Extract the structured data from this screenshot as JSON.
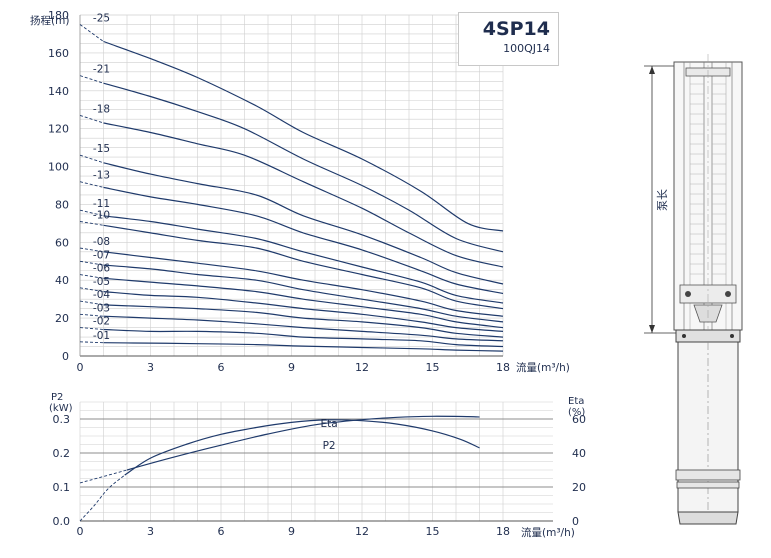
{
  "colors": {
    "curve": "#1f3a6b",
    "grid": "#cfcfcf",
    "grid_major": "#8c8c8c",
    "axis_text": "#1f2d4e"
  },
  "chart_data": [
    {
      "type": "line",
      "title": "4SP14",
      "subtitle": "100QJ14",
      "ylabel": "扬程(m)",
      "xlabel": "流量(m³/h)",
      "xlim": [
        0,
        18
      ],
      "ylim": [
        0,
        180
      ],
      "xticks": [
        0,
        3,
        6,
        9,
        12,
        15,
        18
      ],
      "yticks": [
        0,
        20,
        40,
        60,
        80,
        100,
        120,
        140,
        160,
        180
      ],
      "grid": true,
      "series": [
        {
          "name": "-25",
          "head0": 175,
          "x": [
            1.0,
            3,
            5,
            7.5,
            9.5,
            12,
            14.5,
            16.5,
            18
          ],
          "y": [
            166,
            157,
            147,
            132,
            118,
            104,
            87,
            70,
            66
          ]
        },
        {
          "name": "-21",
          "head0": 148,
          "x": [
            1.0,
            3,
            5,
            7,
            9.5,
            12,
            14,
            16,
            18
          ],
          "y": [
            144,
            137,
            129,
            120,
            104,
            90,
            77,
            62,
            55
          ]
        },
        {
          "name": "-18",
          "head0": 127,
          "x": [
            1.0,
            3,
            5,
            7,
            9.5,
            12,
            14,
            16,
            18
          ],
          "y": [
            123,
            118,
            112,
            106,
            92,
            78,
            65,
            53,
            47
          ]
        },
        {
          "name": "-15",
          "head0": 106,
          "x": [
            1.0,
            3,
            5,
            7.5,
            9.5,
            12,
            14.5,
            16,
            18
          ],
          "y": [
            102,
            96,
            91,
            85,
            74,
            64,
            52,
            44,
            38
          ]
        },
        {
          "name": "-13",
          "head0": 92,
          "x": [
            1.0,
            3,
            5,
            7.5,
            9.5,
            12,
            14.5,
            16,
            18
          ],
          "y": [
            89,
            84,
            80,
            74,
            65,
            56,
            45,
            38,
            33
          ]
        },
        {
          "name": "-11",
          "head0": 77,
          "x": [
            1.0,
            3,
            5,
            7.5,
            9.5,
            12,
            14.5,
            16,
            18
          ],
          "y": [
            74,
            71,
            67,
            62,
            55,
            47,
            39,
            32,
            28
          ]
        },
        {
          "name": "-10",
          "head0": 71,
          "x": [
            1.0,
            3,
            5,
            7.5,
            9.5,
            12,
            14.5,
            16,
            18
          ],
          "y": [
            69,
            65,
            61,
            57,
            50,
            43,
            36,
            29,
            25
          ]
        },
        {
          "name": "-08",
          "head0": 57,
          "x": [
            1.0,
            3,
            5,
            7.5,
            9.5,
            12,
            14.5,
            16,
            18
          ],
          "y": [
            55,
            52,
            49,
            45,
            40,
            35,
            29,
            24,
            21
          ]
        },
        {
          "name": "-07",
          "head0": 50,
          "x": [
            1.0,
            3,
            5,
            7.5,
            9.5,
            12,
            14.5,
            16,
            18
          ],
          "y": [
            48,
            46,
            43,
            40,
            35,
            30,
            25,
            21,
            18
          ]
        },
        {
          "name": "-06",
          "head0": 43,
          "x": [
            1.0,
            3,
            5,
            7.5,
            9.5,
            12,
            14.5,
            16,
            18
          ],
          "y": [
            41,
            39,
            37,
            34,
            30,
            26,
            22,
            18,
            15
          ]
        },
        {
          "name": "-05",
          "head0": 36,
          "x": [
            1.0,
            3,
            5,
            7.5,
            9.5,
            12,
            14.5,
            16,
            18
          ],
          "y": [
            34,
            32,
            31,
            28,
            25,
            22,
            18,
            15,
            13
          ]
        },
        {
          "name": "-04",
          "head0": 29,
          "x": [
            1.0,
            3,
            5,
            7.5,
            9.5,
            12,
            14.5,
            16,
            18
          ],
          "y": [
            27,
            26,
            25,
            23,
            20,
            18,
            15,
            12,
            10
          ]
        },
        {
          "name": "-03",
          "head0": 22,
          "x": [
            1.0,
            3,
            5,
            7.5,
            9.5,
            12,
            14.5,
            16,
            18
          ],
          "y": [
            21,
            20,
            19,
            17,
            15,
            13,
            11,
            9,
            8
          ]
        },
        {
          "name": "-02",
          "head0": 15,
          "x": [
            1.0,
            3,
            5,
            7.5,
            9.5,
            12,
            14.5,
            16,
            18
          ],
          "y": [
            14,
            13,
            13,
            12,
            10,
            9,
            8,
            6,
            5
          ]
        },
        {
          "name": "-01",
          "head0": 7.5,
          "x": [
            1.0,
            3,
            5,
            7.5,
            9.5,
            12,
            14.5,
            16,
            18
          ],
          "y": [
            7,
            6.8,
            6.5,
            6,
            5.2,
            4.5,
            3.8,
            3.1,
            2.6
          ]
        }
      ]
    },
    {
      "type": "line",
      "xlabel": "流量(m³/h)",
      "ylabel_left": "P2\n(kW)",
      "ylabel_right": "Eta\n(%)",
      "xlim": [
        0,
        18
      ],
      "ylim_left": [
        0,
        0.35
      ],
      "ylim_right": [
        0,
        70
      ],
      "xticks": [
        0,
        3,
        6,
        9,
        12,
        15,
        18
      ],
      "yticks_left": [
        0.0,
        0.1,
        0.2,
        0.3
      ],
      "yticks_right": [
        0,
        20,
        40,
        60
      ],
      "ytick_labels_left": [
        "0.0",
        "0.1",
        "0.2",
        "0.3"
      ],
      "series": [
        {
          "name": "Eta",
          "axis": "right",
          "dashed_x": [
            0,
            0.6,
            1.2,
            1.9
          ],
          "dashed_y": [
            0,
            9,
            19,
            27
          ],
          "x": [
            1.9,
            3,
            4.5,
            6,
            7.5,
            9,
            10.5,
            12,
            13.5,
            15,
            16.2,
            17
          ],
          "y": [
            27,
            37,
            45,
            51,
            55,
            58,
            59.5,
            59,
            57,
            53,
            48,
            43
          ]
        },
        {
          "name": "P2",
          "axis": "left",
          "dashed_x": [
            0,
            2
          ],
          "dashed_y": [
            0.112,
            0.15
          ],
          "x": [
            2,
            4,
            6,
            8,
            10,
            12,
            13.5,
            15,
            16.5,
            17
          ],
          "y": [
            0.15,
            0.188,
            0.223,
            0.256,
            0.283,
            0.298,
            0.305,
            0.308,
            0.307,
            0.306
          ]
        }
      ]
    }
  ],
  "labels": {
    "curve_eta": "Eta",
    "curve_p2": "P2"
  },
  "pump": {
    "dimension_label": "泵长"
  }
}
